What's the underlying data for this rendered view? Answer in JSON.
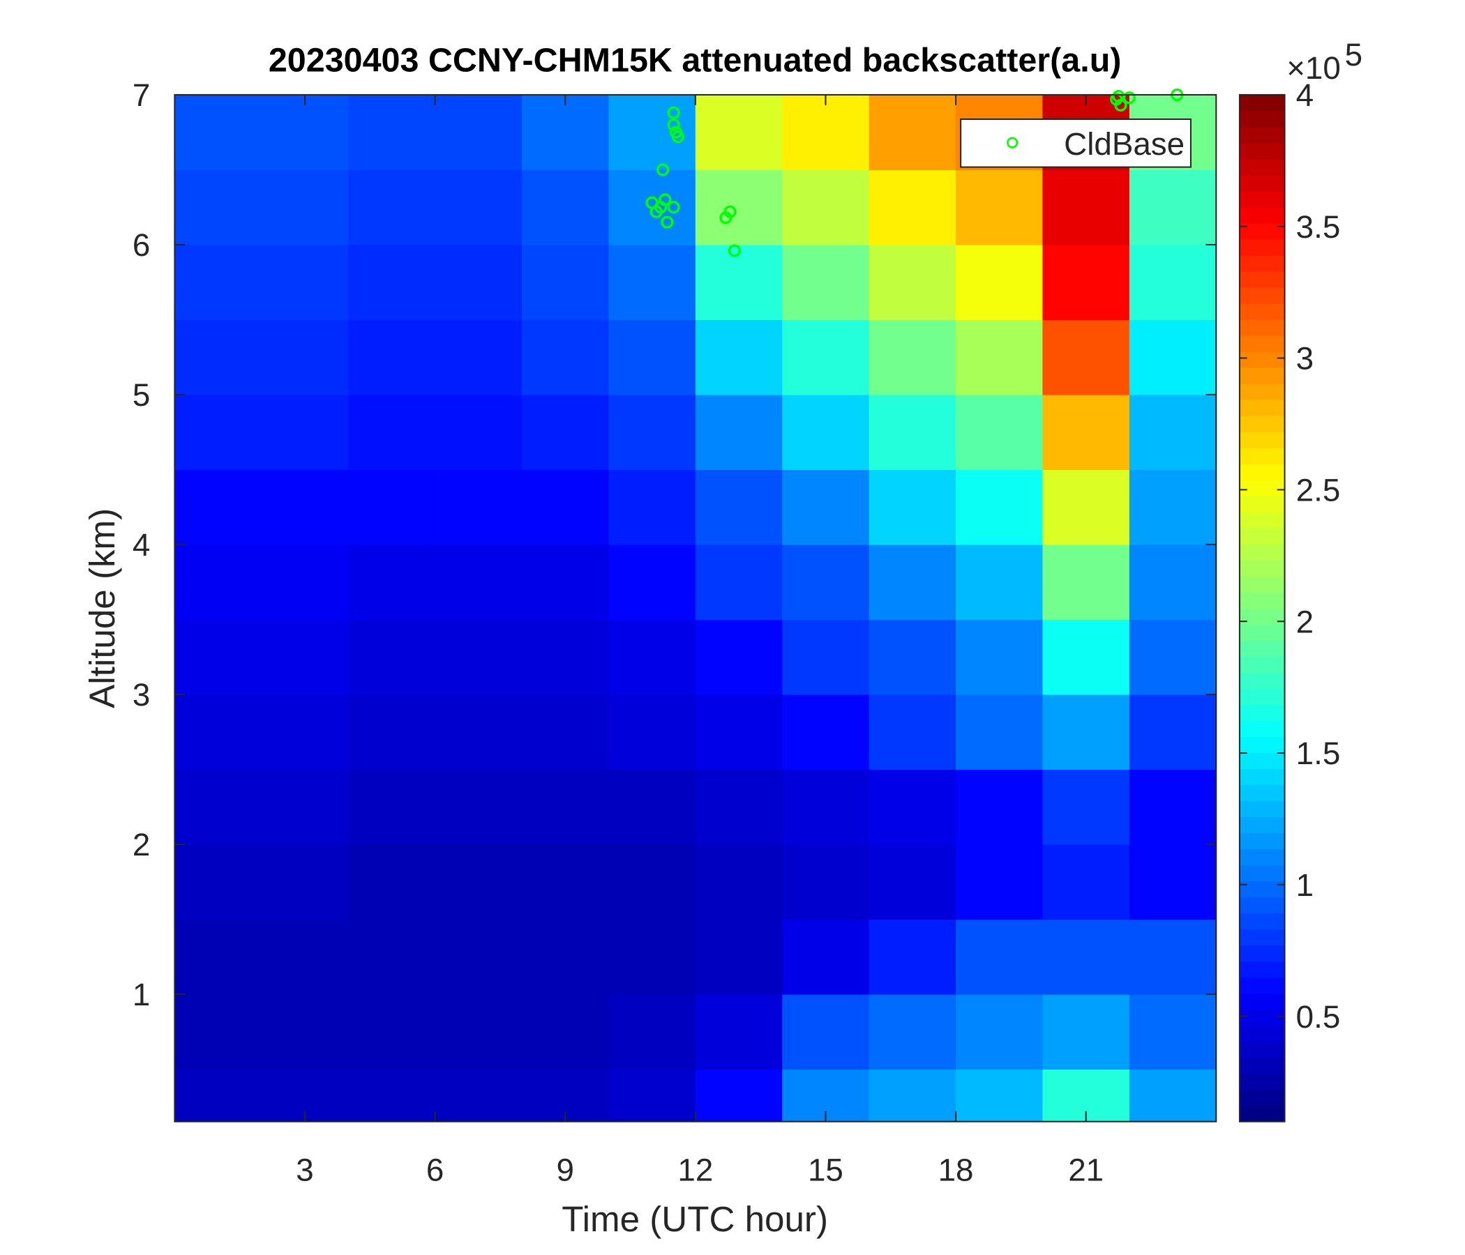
{
  "chart_data": {
    "type": "heatmap",
    "title": "20230403 CCNY-CHM15K attenuated backscatter(a.u)",
    "xlabel": "Time (UTC hour)",
    "ylabel": "Altitude (km)",
    "xlim": [
      0,
      24
    ],
    "ylim": [
      0.15,
      7
    ],
    "xticks": [
      3,
      6,
      9,
      12,
      15,
      18,
      21
    ],
    "yticks": [
      1,
      2,
      3,
      4,
      5,
      6,
      7
    ],
    "x_edges": [
      0,
      2,
      4,
      6,
      8,
      10,
      12,
      14,
      16,
      18,
      20,
      22,
      24
    ],
    "y_edges": [
      0.15,
      0.5,
      1,
      1.5,
      2,
      2.5,
      3,
      3.5,
      4,
      4.5,
      5,
      5.5,
      6,
      6.5,
      7
    ],
    "z": [
      [
        0.35,
        0.35,
        0.35,
        0.35,
        0.35,
        0.4,
        0.6,
        1.1,
        1.2,
        1.3,
        1.7,
        1.2
      ],
      [
        0.3,
        0.3,
        0.3,
        0.3,
        0.3,
        0.35,
        0.45,
        0.9,
        1.0,
        1.1,
        1.2,
        1.0
      ],
      [
        0.3,
        0.3,
        0.3,
        0.3,
        0.3,
        0.3,
        0.35,
        0.5,
        0.7,
        0.9,
        0.9,
        0.9
      ],
      [
        0.35,
        0.35,
        0.3,
        0.3,
        0.3,
        0.3,
        0.35,
        0.4,
        0.45,
        0.6,
        0.7,
        0.6
      ],
      [
        0.4,
        0.4,
        0.35,
        0.35,
        0.35,
        0.35,
        0.4,
        0.45,
        0.5,
        0.6,
        0.8,
        0.6
      ],
      [
        0.45,
        0.45,
        0.4,
        0.4,
        0.4,
        0.45,
        0.5,
        0.6,
        0.8,
        1.0,
        1.2,
        0.8
      ],
      [
        0.5,
        0.5,
        0.45,
        0.45,
        0.45,
        0.5,
        0.6,
        0.8,
        0.9,
        1.1,
        1.6,
        1.0
      ],
      [
        0.55,
        0.55,
        0.5,
        0.5,
        0.5,
        0.6,
        0.8,
        0.9,
        1.1,
        1.3,
        2.0,
        1.1
      ],
      [
        0.6,
        0.6,
        0.6,
        0.6,
        0.6,
        0.7,
        0.9,
        1.1,
        1.4,
        1.6,
        2.4,
        1.2
      ],
      [
        0.7,
        0.7,
        0.65,
        0.65,
        0.7,
        0.8,
        1.1,
        1.4,
        1.7,
        1.9,
        2.8,
        1.3
      ],
      [
        0.75,
        0.75,
        0.7,
        0.7,
        0.8,
        0.9,
        1.4,
        1.7,
        2.0,
        2.2,
        3.2,
        1.5
      ],
      [
        0.8,
        0.8,
        0.75,
        0.75,
        0.85,
        1.0,
        1.7,
        2.0,
        2.3,
        2.5,
        3.5,
        1.7
      ],
      [
        0.85,
        0.85,
        0.8,
        0.8,
        0.9,
        1.1,
        2.1,
        2.3,
        2.6,
        2.8,
        3.6,
        1.8
      ],
      [
        0.9,
        0.9,
        0.85,
        0.85,
        1.0,
        1.2,
        2.4,
        2.6,
        2.9,
        3.0,
        3.7,
        2.0
      ]
    ],
    "colormap": "jet",
    "clim": [
      0.1,
      4
    ],
    "cticks": [
      0.5,
      1,
      1.5,
      2,
      2.5,
      3,
      3.5,
      4
    ],
    "colorbar_exponent_label": "×10",
    "colorbar_exponent": "5",
    "series": [
      {
        "name": "CldBase",
        "type": "scatter",
        "color": "#00ff00",
        "x": [
          11.5,
          11.5,
          11.55,
          11.6,
          11.25,
          11.0,
          11.1,
          11.2,
          11.3,
          11.35,
          11.5,
          12.7,
          12.8,
          12.9,
          21.7,
          21.8,
          22.0,
          23.1,
          21.75
        ],
        "y": [
          6.88,
          6.8,
          6.75,
          6.72,
          6.5,
          6.28,
          6.22,
          6.25,
          6.3,
          6.15,
          6.25,
          6.18,
          6.22,
          5.96,
          6.97,
          6.93,
          6.98,
          7.0,
          6.99
        ]
      }
    ],
    "legend": "northeast"
  }
}
